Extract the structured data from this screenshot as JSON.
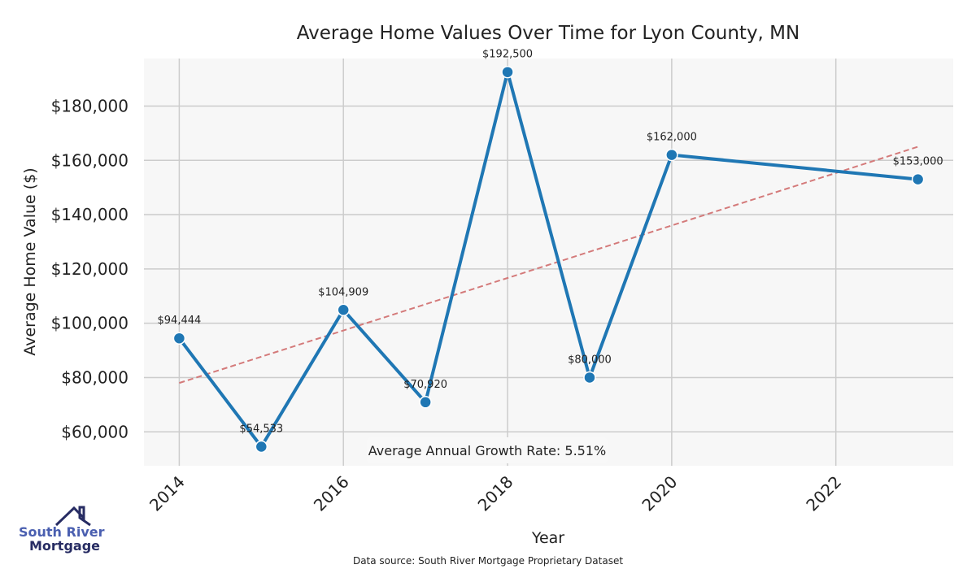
{
  "chart_data": {
    "type": "line",
    "title": "Average Home Values Over Time for Lyon County, MN",
    "xlabel": "Year",
    "ylabel": "Average Home Value ($)",
    "xlim": [
      2013.57,
      2023.43
    ],
    "ylim": [
      47500,
      197500
    ],
    "x_ticks": [
      2014,
      2016,
      2018,
      2020,
      2022
    ],
    "x_tick_labels": [
      "2014",
      "2016",
      "2018",
      "2020",
      "2022"
    ],
    "y_ticks": [
      60000,
      80000,
      100000,
      120000,
      140000,
      160000,
      180000
    ],
    "y_tick_labels": [
      "$60,000",
      "$80,000",
      "$100,000",
      "$120,000",
      "$140,000",
      "$160,000",
      "$180,000"
    ],
    "grid": true,
    "series": [
      {
        "name": "Average Home Value",
        "color": "#1f77b4",
        "x": [
          2014,
          2015,
          2016,
          2017,
          2018,
          2019,
          2020,
          2023
        ],
        "values": [
          94444,
          54533,
          104909,
          70920,
          192500,
          80000,
          162000,
          153000
        ],
        "labels": [
          "$94,444",
          "$54,533",
          "$104,909",
          "$70,920",
          "$192,500",
          "$80,000",
          "$162,000",
          "$153,000"
        ]
      }
    ],
    "trendline": {
      "name": "Trend",
      "color": "#d47a7a",
      "x": [
        2014,
        2023
      ],
      "values": [
        78000,
        165000
      ]
    },
    "annotation": "Average Annual Growth Rate: 5.51%",
    "source": "Data source: South River Mortgage Proprietary Dataset"
  },
  "logo": {
    "line1": "South River",
    "line2": "Mortgage"
  }
}
